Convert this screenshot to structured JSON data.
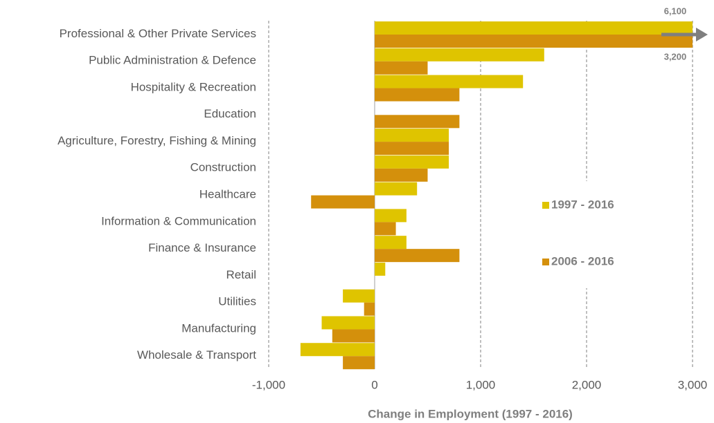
{
  "chart_data": {
    "type": "bar",
    "orientation": "horizontal",
    "x_label": "Change in Employment (1997 - 2016)",
    "categories": [
      "Professional & Other Private Services",
      "Public Administration & Defence",
      "Hospitality & Recreation",
      "Education",
      "Agriculture, Forestry, Fishing & Mining",
      "Construction",
      "Healthcare",
      "Information & Communication",
      "Finance & Insurance",
      "Retail",
      "Utilities",
      "Manufacturing",
      "Wholesale & Transport"
    ],
    "series": [
      {
        "name": "1997 - 2016",
        "color": "#dfc400",
        "values": [
          6100,
          1600,
          1400,
          0,
          700,
          700,
          400,
          300,
          300,
          100,
          -300,
          -500,
          -700
        ],
        "value_labels": [
          "6,100",
          null,
          null,
          null,
          null,
          null,
          null,
          null,
          null,
          null,
          null,
          null,
          null
        ]
      },
      {
        "name": "2006 - 2016",
        "color": "#d4900c",
        "values": [
          3200,
          500,
          800,
          800,
          700,
          500,
          -600,
          200,
          800,
          0,
          -100,
          -400,
          -300
        ],
        "value_labels": [
          "3,200",
          null,
          null,
          null,
          null,
          null,
          null,
          null,
          null,
          null,
          null,
          null,
          null
        ]
      }
    ],
    "xlim": [
      -1000,
      3000
    ],
    "xticks": [
      {
        "value": -1000,
        "label": "-1,000"
      },
      0,
      {
        "value": 1000,
        "label": "1,000"
      },
      {
        "value": 2000,
        "label": "2,000"
      },
      {
        "value": 3000,
        "label": "3,000"
      }
    ],
    "grid": true
  }
}
